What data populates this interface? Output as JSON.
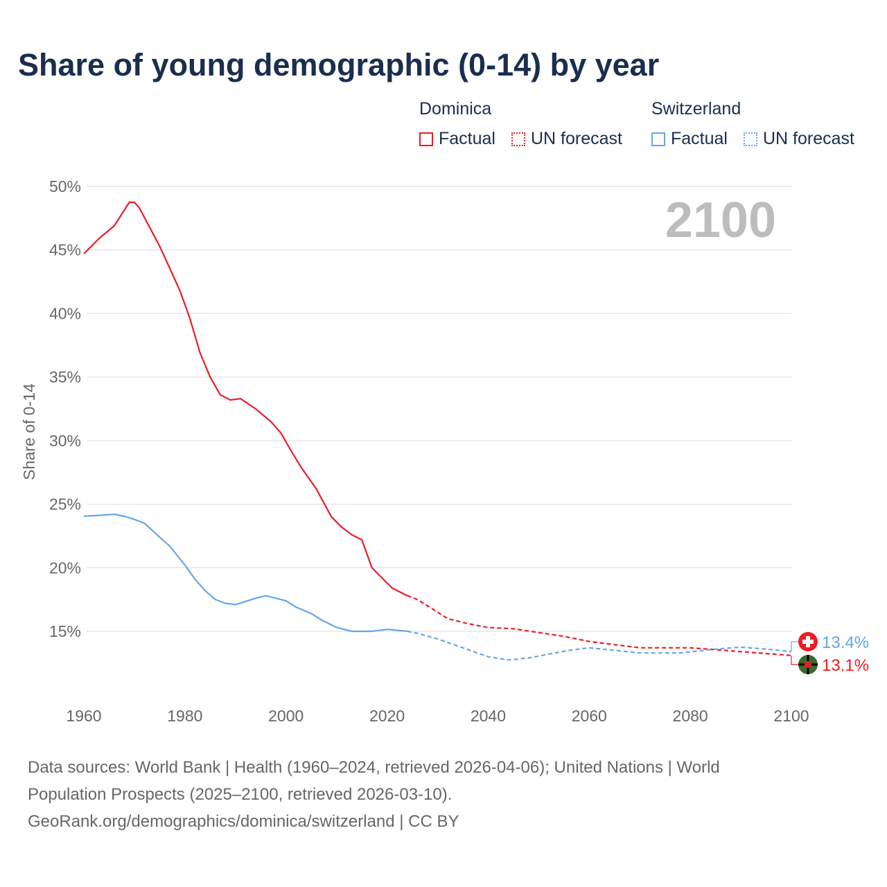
{
  "chart_data": {
    "type": "line",
    "title": "Share of young demographic (0-14) by year",
    "xlabel": "",
    "ylabel": "Share of 0-14",
    "xlim": [
      1960,
      2100
    ],
    "ylim": [
      10,
      50
    ],
    "xticks": [
      "1960",
      "1980",
      "2000",
      "2020",
      "2040",
      "2060",
      "2080",
      "2100"
    ],
    "yticks": [
      "15%",
      "20%",
      "25%",
      "30%",
      "35%",
      "40%",
      "45%",
      "50%"
    ],
    "year_label": "2100",
    "legend": {
      "groups": [
        {
          "name": "Dominica",
          "items": [
            "Factual",
            "UN forecast"
          ]
        },
        {
          "name": "Switzerland",
          "items": [
            "Factual",
            "UN forecast"
          ]
        }
      ]
    },
    "series": [
      {
        "name": "Dominica",
        "color": "#ee1c25",
        "factual": [
          [
            1960,
            44.7
          ],
          [
            1963,
            45.9
          ],
          [
            1966,
            46.9
          ],
          [
            1969,
            48.75
          ],
          [
            1970,
            48.75
          ],
          [
            1971,
            48.3
          ],
          [
            1975,
            45.3
          ],
          [
            1979,
            41.8
          ],
          [
            1981,
            39.6
          ],
          [
            1983,
            36.9
          ],
          [
            1985,
            35.0
          ],
          [
            1987,
            33.6
          ],
          [
            1989,
            33.2
          ],
          [
            1991,
            33.3
          ],
          [
            1994,
            32.5
          ],
          [
            1997,
            31.5
          ],
          [
            1999,
            30.6
          ],
          [
            2001,
            29.2
          ],
          [
            2003,
            27.9
          ],
          [
            2006,
            26.2
          ],
          [
            2009,
            24.0
          ],
          [
            2011,
            23.2
          ],
          [
            2013,
            22.6
          ],
          [
            2015,
            22.2
          ],
          [
            2017,
            20.0
          ],
          [
            2019,
            19.2
          ],
          [
            2021,
            18.4
          ],
          [
            2024,
            17.8
          ]
        ],
        "forecast": [
          [
            2024,
            17.8
          ],
          [
            2026,
            17.5
          ],
          [
            2028,
            17.0
          ],
          [
            2032,
            16.0
          ],
          [
            2036,
            15.6
          ],
          [
            2040,
            15.3
          ],
          [
            2045,
            15.2
          ],
          [
            2050,
            14.9
          ],
          [
            2055,
            14.6
          ],
          [
            2060,
            14.2
          ],
          [
            2065,
            13.95
          ],
          [
            2070,
            13.7
          ],
          [
            2080,
            13.7
          ],
          [
            2090,
            13.4
          ],
          [
            2095,
            13.25
          ],
          [
            2100,
            13.1
          ]
        ],
        "end_label": "13.1%"
      },
      {
        "name": "Switzerland",
        "color": "#64a6e8",
        "factual": [
          [
            1960,
            24.05
          ],
          [
            1962,
            24.1
          ],
          [
            1966,
            24.2
          ],
          [
            1968,
            24.05
          ],
          [
            1970,
            23.8
          ],
          [
            1972,
            23.5
          ],
          [
            1975,
            22.4
          ],
          [
            1977,
            21.7
          ],
          [
            1980,
            20.2
          ],
          [
            1982,
            19.1
          ],
          [
            1984,
            18.2
          ],
          [
            1986,
            17.5
          ],
          [
            1988,
            17.2
          ],
          [
            1990,
            17.1
          ],
          [
            1992,
            17.35
          ],
          [
            1994,
            17.6
          ],
          [
            1996,
            17.8
          ],
          [
            1998,
            17.6
          ],
          [
            2000,
            17.4
          ],
          [
            2002,
            16.9
          ],
          [
            2005,
            16.4
          ],
          [
            2007,
            15.9
          ],
          [
            2010,
            15.3
          ],
          [
            2013,
            15.0
          ],
          [
            2017,
            15.0
          ],
          [
            2020,
            15.15
          ],
          [
            2024,
            15.0
          ]
        ],
        "forecast": [
          [
            2024,
            15.0
          ],
          [
            2026,
            14.85
          ],
          [
            2030,
            14.4
          ],
          [
            2035,
            13.7
          ],
          [
            2040,
            13.0
          ],
          [
            2044,
            12.75
          ],
          [
            2048,
            12.9
          ],
          [
            2052,
            13.2
          ],
          [
            2056,
            13.5
          ],
          [
            2060,
            13.7
          ],
          [
            2065,
            13.5
          ],
          [
            2070,
            13.3
          ],
          [
            2078,
            13.3
          ],
          [
            2085,
            13.6
          ],
          [
            2090,
            13.75
          ],
          [
            2095,
            13.6
          ],
          [
            2100,
            13.4
          ]
        ],
        "end_label": "13.4%"
      }
    ]
  },
  "source": {
    "line1": "Data sources: World Bank | Health (1960–2024, retrieved 2026-04-06); United Nations | World",
    "line2": "Population Prospects (2025–2100, retrieved 2026-03-10).",
    "line3": "GeoRank.org/demographics/dominica/switzerland | CC BY"
  }
}
